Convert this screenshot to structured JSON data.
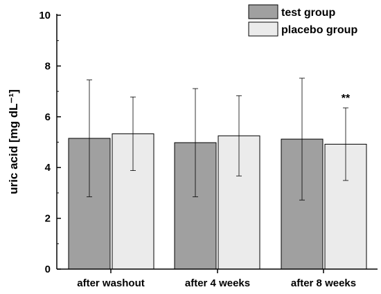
{
  "chart_data": {
    "type": "bar",
    "categories": [
      "after washout",
      "after 4 weeks",
      "after 8 weeks"
    ],
    "series": [
      {
        "name": "test group",
        "color": "#a0a0a0",
        "values": [
          5.15,
          4.98,
          5.12
        ],
        "error": [
          2.3,
          2.13,
          2.4
        ]
      },
      {
        "name": "placebo group",
        "color": "#ebebeb",
        "values": [
          5.33,
          5.25,
          4.92
        ],
        "error": [
          1.45,
          1.58,
          1.43
        ]
      }
    ],
    "ylabel": "uric acid [mg dL⁻¹]",
    "ylim": [
      0,
      10
    ],
    "yticks": [
      "0",
      "2",
      "4",
      "6",
      "8",
      "10"
    ],
    "legend_position": "top-right",
    "annotations": [
      {
        "text": "**",
        "category": "after 8 weeks",
        "series": "placebo group"
      }
    ]
  }
}
